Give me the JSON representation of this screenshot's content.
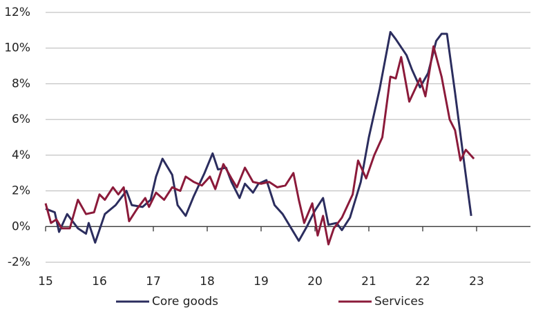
{
  "chart_data": {
    "type": "line",
    "xlim": [
      15,
      24
    ],
    "xticks": [
      15,
      16,
      17,
      18,
      19,
      20,
      21,
      22,
      23
    ],
    "ylim": [
      -2,
      12
    ],
    "yticks": [
      {
        "value": -2,
        "label": "-2%"
      },
      {
        "value": 0,
        "label": "0%"
      },
      {
        "value": 2,
        "label": "2%"
      },
      {
        "value": 4,
        "label": "4%"
      },
      {
        "value": 6,
        "label": "6%"
      },
      {
        "value": 8,
        "label": "8%"
      },
      {
        "value": 10,
        "label": "10%"
      },
      {
        "value": 12,
        "label": "12%"
      }
    ],
    "grid": true,
    "legend": "bottom",
    "series": [
      {
        "name": "Core goods",
        "color": "#2b2d5e",
        "x": [
          15.0,
          15.17,
          15.25,
          15.4,
          15.6,
          15.75,
          15.8,
          15.92,
          16.1,
          16.3,
          16.5,
          16.6,
          16.8,
          16.95,
          17.05,
          17.17,
          17.35,
          17.45,
          17.6,
          17.75,
          17.95,
          18.1,
          18.2,
          18.35,
          18.45,
          18.6,
          18.7,
          18.85,
          18.95,
          19.1,
          19.25,
          19.4,
          19.6,
          19.7,
          19.85,
          20.0,
          20.15,
          20.25,
          20.4,
          20.5,
          20.65,
          20.85,
          21.0,
          21.2,
          21.4,
          21.5,
          21.7,
          21.8,
          21.95,
          22.1,
          22.25,
          22.35,
          22.45,
          22.6,
          22.75,
          22.9
        ],
        "values": [
          1.0,
          0.8,
          -0.3,
          0.7,
          -0.1,
          -0.4,
          0.2,
          -0.9,
          0.7,
          1.2,
          2.0,
          1.2,
          1.1,
          1.5,
          2.8,
          3.8,
          2.9,
          1.2,
          0.6,
          1.7,
          3.0,
          4.1,
          3.2,
          3.3,
          2.5,
          1.6,
          2.4,
          1.9,
          2.4,
          2.6,
          1.2,
          0.7,
          -0.3,
          -0.8,
          0.0,
          0.9,
          1.6,
          0.1,
          0.2,
          -0.2,
          0.5,
          2.5,
          5.0,
          7.7,
          10.9,
          10.5,
          9.6,
          8.8,
          7.8,
          8.6,
          10.4,
          10.8,
          10.8,
          7.5,
          4.0,
          0.6
        ]
      },
      {
        "name": "Services",
        "color": "#8b1a3a",
        "x": [
          15.0,
          15.1,
          15.2,
          15.3,
          15.45,
          15.6,
          15.75,
          15.9,
          16.0,
          16.1,
          16.25,
          16.35,
          16.45,
          16.55,
          16.7,
          16.85,
          16.92,
          17.05,
          17.2,
          17.35,
          17.5,
          17.6,
          17.75,
          17.9,
          18.05,
          18.15,
          18.3,
          18.45,
          18.55,
          18.7,
          18.85,
          19.0,
          19.15,
          19.3,
          19.45,
          19.6,
          19.7,
          19.8,
          19.95,
          20.05,
          20.15,
          20.25,
          20.35,
          20.5,
          20.7,
          20.8,
          20.95,
          21.1,
          21.25,
          21.4,
          21.5,
          21.6,
          21.75,
          21.95,
          22.05,
          22.2,
          22.35,
          22.5,
          22.6,
          22.7,
          22.8,
          22.95
        ],
        "values": [
          1.3,
          0.2,
          0.4,
          -0.1,
          -0.1,
          1.5,
          0.7,
          0.8,
          1.8,
          1.5,
          2.2,
          1.8,
          2.2,
          0.3,
          1.0,
          1.6,
          1.1,
          1.9,
          1.5,
          2.2,
          2.0,
          2.8,
          2.5,
          2.3,
          2.8,
          2.1,
          3.5,
          2.7,
          2.2,
          3.3,
          2.5,
          2.4,
          2.5,
          2.2,
          2.3,
          3.0,
          1.5,
          0.2,
          1.3,
          -0.5,
          0.6,
          -1.0,
          -0.1,
          0.5,
          1.8,
          3.7,
          2.7,
          4.0,
          5.0,
          8.4,
          8.3,
          9.5,
          7.0,
          8.3,
          7.3,
          10.1,
          8.4,
          6.0,
          5.4,
          3.7,
          4.3,
          3.8
        ]
      }
    ]
  }
}
